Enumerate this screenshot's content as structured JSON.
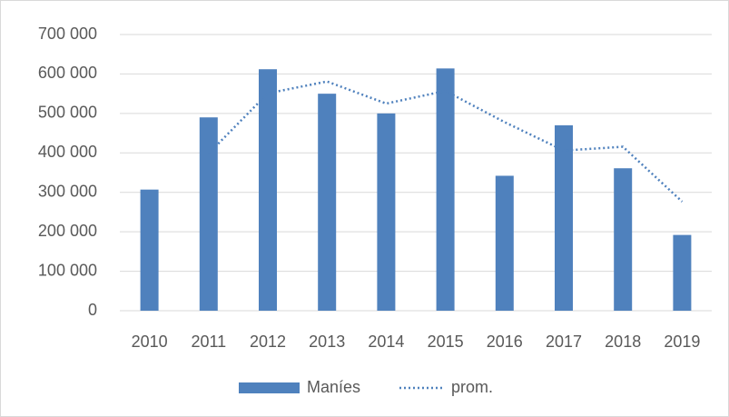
{
  "chart_data": {
    "type": "bar",
    "categories": [
      "2010",
      "2011",
      "2012",
      "2013",
      "2014",
      "2015",
      "2016",
      "2017",
      "2018",
      "2019"
    ],
    "series": [
      {
        "name": "Maníes",
        "color": "#4f81bd",
        "values": [
          307000,
          490000,
          612000,
          550000,
          500000,
          614000,
          342000,
          470000,
          361000,
          192000
        ]
      },
      {
        "name": "prom.",
        "color": "#4f81bd",
        "type": "line",
        "values": [
          null,
          398500,
          551000,
          581000,
          525000,
          557000,
          478000,
          406000,
          415500,
          276500
        ]
      }
    ],
    "ylim": [
      0,
      700000
    ],
    "yticks": [
      0,
      {
        "value": 100000,
        "label": "100 000"
      },
      {
        "value": 200000,
        "label": "200 000"
      },
      {
        "value": 300000,
        "label": "300 000"
      },
      {
        "value": 400000,
        "label": "400 000"
      },
      {
        "value": 500000,
        "label": "500 000"
      },
      {
        "value": 600000,
        "label": "600 000"
      },
      {
        "value": 700000,
        "label": "700 000"
      }
    ],
    "grid": true,
    "legend": "bottom"
  }
}
